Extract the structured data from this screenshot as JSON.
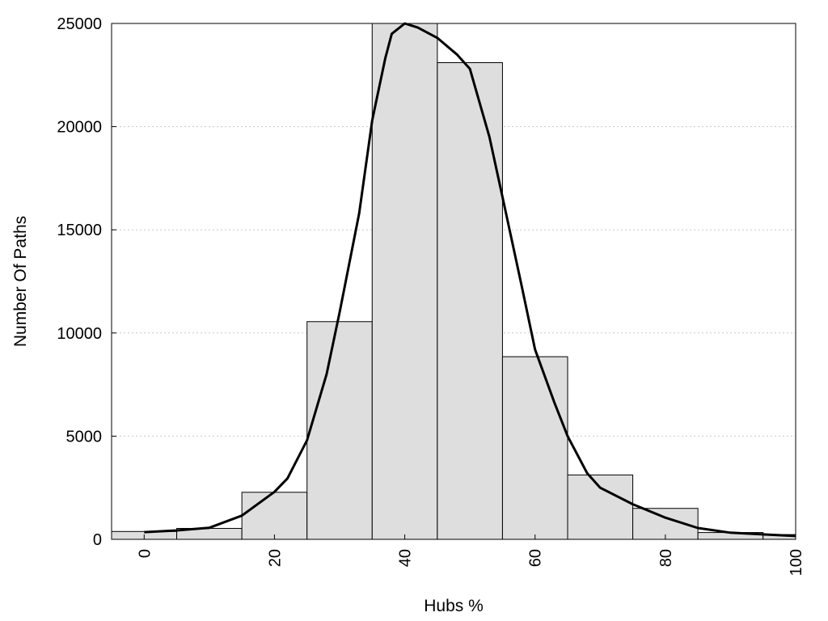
{
  "chart_data": {
    "type": "bar",
    "title": "",
    "xlabel": "Hubs %",
    "ylabel": "Number Of Paths",
    "xlim": [
      -5,
      100
    ],
    "ylim": [
      0,
      25000
    ],
    "grid": true,
    "x_ticks": [
      0,
      20,
      40,
      60,
      80,
      100
    ],
    "x_tick_labels": [
      "0",
      "20",
      "40",
      "60",
      "80",
      "100"
    ],
    "y_ticks": [
      0,
      5000,
      10000,
      15000,
      20000,
      25000
    ],
    "y_tick_labels": [
      "0",
      "5000",
      "10000",
      "15000",
      "20000",
      "25000"
    ],
    "bin_width": 10,
    "bins": [
      0,
      10,
      20,
      30,
      40,
      50,
      60,
      70,
      80,
      90,
      100
    ],
    "values": [
      380,
      530,
      2280,
      10550,
      25000,
      23100,
      8850,
      3120,
      1500,
      330,
      230
    ],
    "curve": {
      "type": "line",
      "x": [
        0,
        5,
        10,
        15,
        20,
        22,
        25,
        28,
        30,
        33,
        35,
        37,
        38,
        40,
        42,
        45,
        48,
        50,
        53,
        55,
        58,
        60,
        63,
        65,
        68,
        70,
        75,
        80,
        85,
        90,
        95,
        100
      ],
      "y": [
        350,
        430,
        560,
        1150,
        2300,
        2950,
        4800,
        8000,
        11000,
        15800,
        20300,
        23300,
        24500,
        25000,
        24800,
        24300,
        23500,
        22800,
        19500,
        16600,
        12200,
        9200,
        6600,
        5000,
        3200,
        2500,
        1700,
        1050,
        550,
        320,
        240,
        160
      ]
    }
  }
}
